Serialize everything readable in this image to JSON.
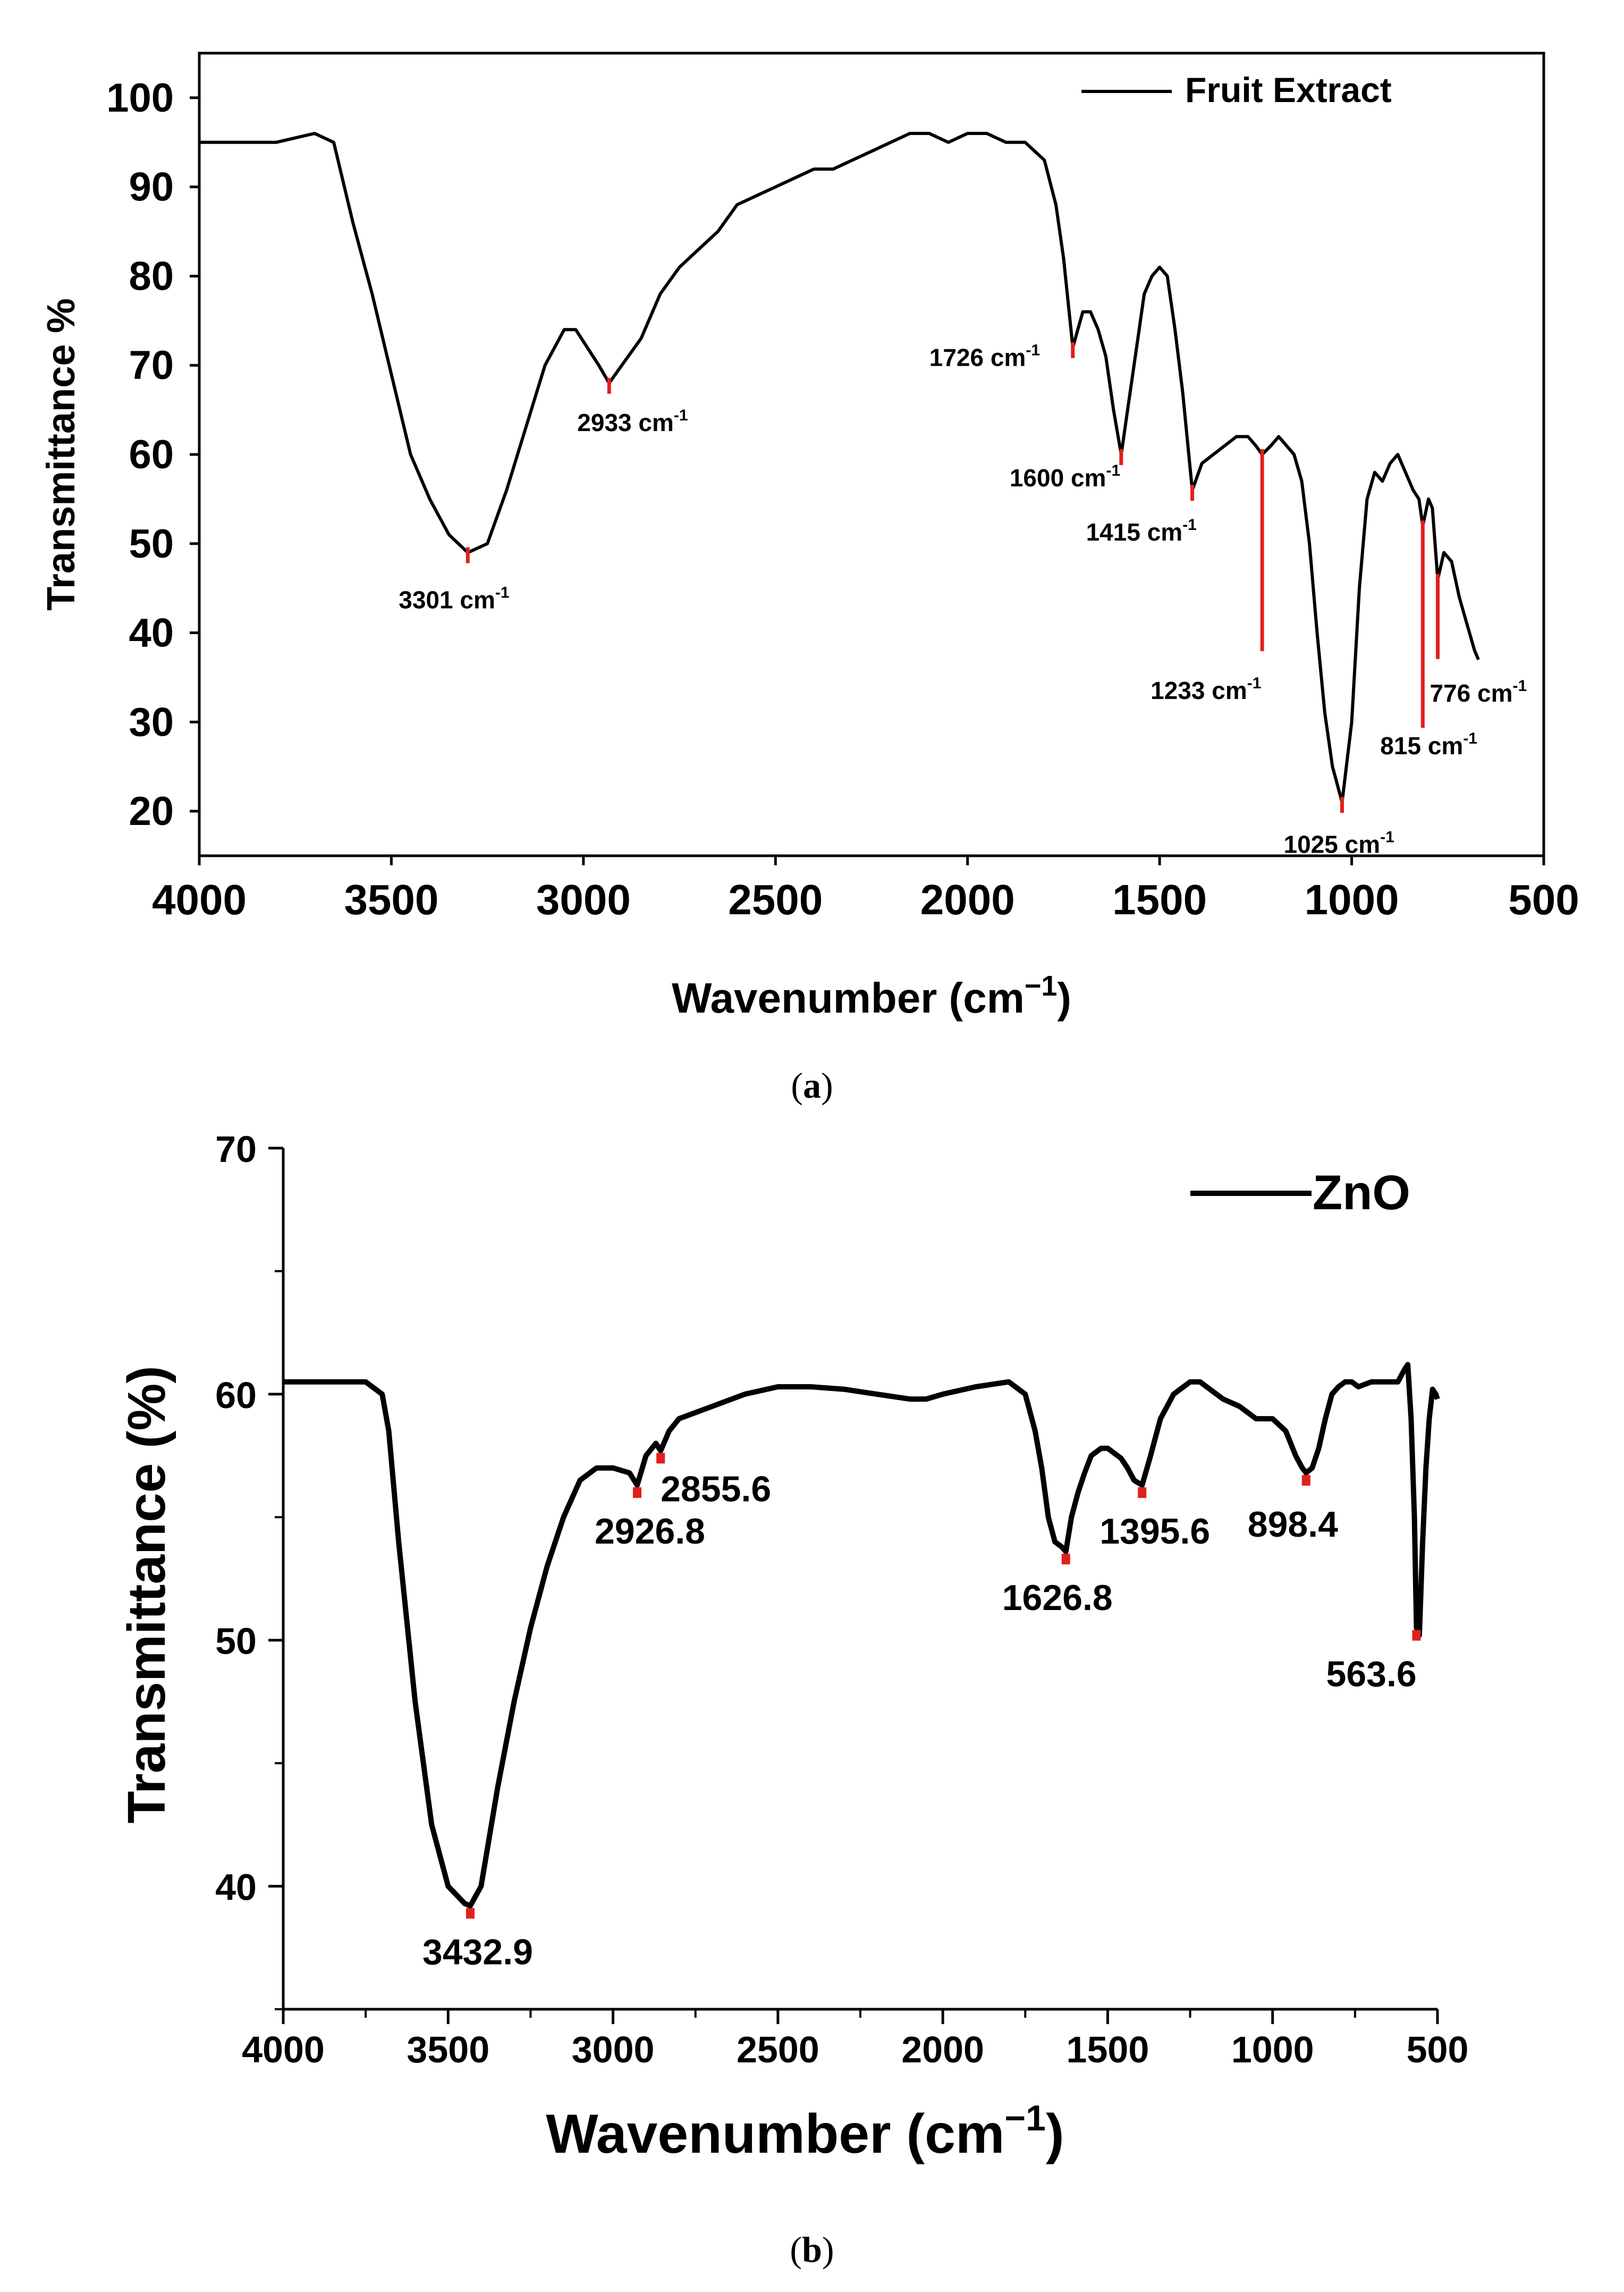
{
  "chart_data": [
    {
      "type": "line",
      "panel": "a",
      "caption_open": "(",
      "caption_letter": "a",
      "caption_close": ")",
      "title": "",
      "xlabel": "Wavenumber (cm",
      "xlabel_sup": "−1",
      "xlabel_close": ")",
      "ylabel": "Transmittance %",
      "xlim": [
        4000,
        500
      ],
      "ylim": [
        15,
        105
      ],
      "xticks": [
        4000,
        3500,
        3000,
        2500,
        2000,
        1500,
        1000,
        500
      ],
      "yticks": [
        20,
        30,
        40,
        50,
        60,
        70,
        80,
        90,
        100
      ],
      "legend": "Fruit Extract",
      "legend_position": "top-right",
      "series": [
        {
          "name": "Fruit Extract",
          "x": [
            4000,
            3900,
            3800,
            3700,
            3650,
            3600,
            3550,
            3500,
            3450,
            3400,
            3350,
            3301,
            3250,
            3200,
            3150,
            3100,
            3050,
            3020,
            2990,
            2960,
            2933,
            2900,
            2850,
            2800,
            2750,
            2700,
            2650,
            2600,
            2550,
            2500,
            2450,
            2400,
            2350,
            2300,
            2250,
            2200,
            2150,
            2100,
            2050,
            2000,
            1950,
            1900,
            1850,
            1800,
            1770,
            1750,
            1726,
            1700,
            1680,
            1660,
            1640,
            1620,
            1600,
            1580,
            1560,
            1540,
            1520,
            1500,
            1480,
            1460,
            1440,
            1415,
            1390,
            1360,
            1330,
            1300,
            1270,
            1250,
            1233,
            1210,
            1190,
            1170,
            1150,
            1130,
            1110,
            1090,
            1070,
            1050,
            1025,
            1000,
            980,
            960,
            940,
            920,
            900,
            880,
            860,
            840,
            825,
            815,
            800,
            790,
            776,
            760,
            740,
            720,
            700,
            680,
            670
          ],
          "y": [
            95,
            95,
            95,
            96,
            95,
            86,
            78,
            69,
            60,
            55,
            51,
            49,
            50,
            56,
            63,
            70,
            74,
            74,
            72,
            70,
            68,
            70,
            73,
            78,
            81,
            83,
            85,
            88,
            89,
            90,
            91,
            92,
            92,
            93,
            94,
            95,
            96,
            96,
            95,
            96,
            96,
            95,
            95,
            93,
            88,
            82,
            72,
            76,
            76,
            74,
            71,
            65,
            60,
            66,
            72,
            78,
            80,
            81,
            80,
            74,
            67,
            56,
            59,
            60,
            61,
            62,
            62,
            61,
            60,
            61,
            62,
            61,
            60,
            57,
            50,
            40,
            31,
            25,
            21,
            30,
            45,
            55,
            58,
            57,
            59,
            60,
            58,
            56,
            55,
            52,
            55,
            54,
            46,
            49,
            48,
            44,
            41,
            38,
            37
          ]
        }
      ],
      "annotations": [
        {
          "x": 3301,
          "label": "3301 cm",
          "sup": "-1"
        },
        {
          "x": 2933,
          "label": "2933 cm",
          "sup": "-1"
        },
        {
          "x": 1726,
          "label": "1726 cm",
          "sup": "-1"
        },
        {
          "x": 1600,
          "label": "1600 cm",
          "sup": "-1"
        },
        {
          "x": 1415,
          "label": "1415 cm",
          "sup": "-1"
        },
        {
          "x": 1233,
          "label": "1233 cm",
          "sup": "-1"
        },
        {
          "x": 1025,
          "label": "1025 cm",
          "sup": "-1"
        },
        {
          "x": 815,
          "label": "815 cm",
          "sup": "-1"
        },
        {
          "x": 776,
          "label": "776 cm",
          "sup": "-1"
        }
      ]
    },
    {
      "type": "line",
      "panel": "b",
      "caption_open": "(",
      "caption_letter": "b",
      "caption_close": ")",
      "title": "",
      "xlabel": "Wavenumber (cm",
      "xlabel_sup": "−1",
      "xlabel_close": ")",
      "ylabel": "Transmittance (%)",
      "xlim": [
        4000,
        500
      ],
      "ylim": [
        35,
        70
      ],
      "xticks": [
        4000,
        3500,
        3000,
        2500,
        2000,
        1500,
        1000,
        500
      ],
      "yticks": [
        40,
        50,
        60,
        70
      ],
      "legend": "ZnO",
      "legend_position": "top-right",
      "series": [
        {
          "name": "ZnO",
          "x": [
            4000,
            3900,
            3800,
            3750,
            3700,
            3680,
            3650,
            3600,
            3550,
            3500,
            3450,
            3432.9,
            3400,
            3350,
            3300,
            3250,
            3200,
            3150,
            3100,
            3050,
            3000,
            2950,
            2926.8,
            2900,
            2870,
            2855.6,
            2830,
            2800,
            2700,
            2600,
            2500,
            2400,
            2300,
            2200,
            2100,
            2050,
            2000,
            1900,
            1800,
            1750,
            1720,
            1700,
            1680,
            1660,
            1640,
            1626.8,
            1610,
            1590,
            1570,
            1550,
            1520,
            1500,
            1480,
            1460,
            1440,
            1420,
            1395.6,
            1370,
            1340,
            1300,
            1250,
            1220,
            1200,
            1150,
            1100,
            1050,
            1000,
            960,
            930,
            910,
            898.4,
            880,
            860,
            840,
            820,
            800,
            780,
            760,
            740,
            700,
            650,
            620,
            600,
            590,
            580,
            570,
            563.6,
            555,
            545,
            535,
            525,
            515,
            505,
            500
          ],
          "y": [
            60.5,
            60.5,
            60.5,
            60.5,
            60.0,
            58.5,
            54.0,
            47.5,
            42.5,
            40.0,
            39.3,
            39.2,
            40.0,
            44.0,
            47.5,
            50.5,
            53.0,
            55.0,
            56.5,
            57.0,
            57.0,
            56.8,
            56.3,
            57.5,
            58.0,
            57.7,
            58.5,
            59.0,
            59.5,
            60.0,
            60.3,
            60.3,
            60.2,
            60.0,
            59.8,
            59.8,
            60.0,
            60.3,
            60.5,
            60.0,
            58.5,
            57.0,
            55.0,
            54.0,
            53.8,
            53.6,
            55.0,
            56.0,
            56.8,
            57.5,
            57.8,
            57.8,
            57.6,
            57.4,
            57.0,
            56.5,
            56.3,
            57.5,
            59.0,
            60.0,
            60.5,
            60.5,
            60.3,
            59.8,
            59.5,
            59.0,
            59.0,
            58.5,
            57.5,
            57.0,
            56.8,
            57.0,
            57.8,
            59.0,
            60.0,
            60.3,
            60.5,
            60.5,
            60.3,
            60.5,
            60.5,
            60.5,
            61.0,
            61.2,
            59.0,
            55.0,
            50.5,
            50.2,
            54.0,
            57.0,
            59.0,
            60.2,
            60.0,
            59.8
          ]
        }
      ],
      "annotations": [
        {
          "x": 3432.9,
          "label": "3432.9"
        },
        {
          "x": 2926.8,
          "label": "2926.8"
        },
        {
          "x": 2855.6,
          "label": "2855.6"
        },
        {
          "x": 1626.8,
          "label": "1626.8"
        },
        {
          "x": 1395.6,
          "label": "1395.6"
        },
        {
          "x": 898.4,
          "label": "898.4"
        },
        {
          "x": 563.6,
          "label": "563.6"
        }
      ]
    }
  ]
}
